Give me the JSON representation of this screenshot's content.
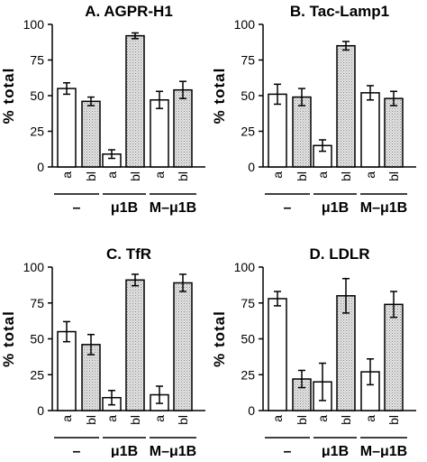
{
  "ylabel": "% total",
  "chart_data": [
    {
      "type": "bar",
      "title": "A. AGPR-H1",
      "ylabel": "% total",
      "ylim": [
        0,
        100
      ],
      "yticks": [
        "0",
        "25",
        "50",
        "75",
        "100"
      ],
      "categories": [
        "a",
        "bl",
        "a",
        "bl",
        "a",
        "bl"
      ],
      "groups": [
        "–",
        "μ1B",
        "M–μ1B"
      ],
      "values": [
        55,
        46,
        9,
        92,
        47,
        54
      ],
      "errors": [
        4,
        3,
        3,
        2,
        6,
        6
      ]
    },
    {
      "type": "bar",
      "title": "B. Tac-Lamp1",
      "ylabel": "% total",
      "ylim": [
        0,
        100
      ],
      "yticks": [
        "0",
        "25",
        "50",
        "75",
        "100"
      ],
      "categories": [
        "a",
        "bl",
        "a",
        "bl",
        "a",
        "bl"
      ],
      "groups": [
        "–",
        "μ1B",
        "M–μ1B"
      ],
      "values": [
        51,
        49,
        15,
        85,
        52,
        48
      ],
      "errors": [
        7,
        6,
        4,
        3,
        5,
        5
      ]
    },
    {
      "type": "bar",
      "title": "C. TfR",
      "ylabel": "% total",
      "ylim": [
        0,
        100
      ],
      "yticks": [
        "0",
        "25",
        "50",
        "75",
        "100"
      ],
      "categories": [
        "a",
        "bl",
        "a",
        "bl",
        "a",
        "bl"
      ],
      "groups": [
        "–",
        "μ1B",
        "M–μ1B"
      ],
      "values": [
        55,
        46,
        9,
        91,
        11,
        89
      ],
      "errors": [
        7,
        7,
        5,
        4,
        6,
        6
      ]
    },
    {
      "type": "bar",
      "title": "D. LDLR",
      "ylabel": "% total",
      "ylim": [
        0,
        100
      ],
      "yticks": [
        "0",
        "25",
        "50",
        "75",
        "100"
      ],
      "categories": [
        "a",
        "bl",
        "a",
        "bl",
        "a",
        "bl"
      ],
      "groups": [
        "–",
        "μ1B",
        "M–μ1B"
      ],
      "values": [
        78,
        22,
        20,
        80,
        27,
        74
      ],
      "errors": [
        5,
        6,
        13,
        12,
        9,
        9
      ]
    }
  ]
}
